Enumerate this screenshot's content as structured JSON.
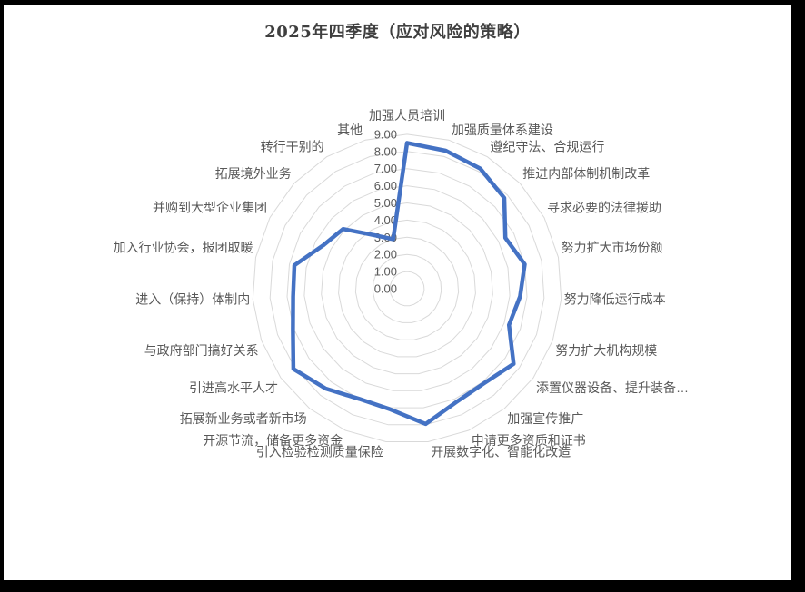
{
  "window": {
    "background": "#ffffff",
    "frame_color": "#000000"
  },
  "chart_data": {
    "type": "radar",
    "title": "2025年四季度（应对风险的策略）",
    "categories": [
      "加强人员培训",
      "加强质量体系建设",
      "遵纪守法、合规运行",
      "推进内部体制机制改革",
      "寻求必要的法律援助",
      "努力扩大市场份额",
      "努力降低运行成本",
      "努力扩大机构规模",
      "添置仪器设备、提升装备…",
      "加强宣传推广",
      "申请更多资质和证书",
      "开展数字化、智能化改造",
      "引入检验检测质量保险",
      "开源节流，储备更多资金",
      "拓展新业务或者新市场",
      "引进高水平人才",
      "与政府部门搞好关系",
      "进入（保持）体制内",
      "加入行业协会，报团取暖",
      "并购到大型企业集团",
      "拓展境外业务",
      "转行干别的",
      "其他"
    ],
    "values": [
      8.5,
      8.35,
      8.2,
      7.75,
      6.45,
      7.0,
      6.6,
      6.3,
      7.6,
      7.1,
      7.2,
      7.95,
      7.1,
      7.0,
      7.5,
      8.1,
      7.05,
      6.65,
      6.7,
      5.5,
      5.1,
      3.65,
      3.0
    ],
    "axis": {
      "min": 0,
      "max": 9,
      "step": 1,
      "tick_labels": [
        "0.00",
        "1.00",
        "2.00",
        "3.00",
        "4.00",
        "5.00",
        "6.00",
        "7.00",
        "8.00",
        "9.00"
      ]
    },
    "grid": true,
    "legend": "none",
    "styles": {
      "line_color": "#4472C4",
      "grid_color": "#D9D9D9",
      "label_color": "#595959",
      "title_color": "#3f3f3f"
    }
  }
}
